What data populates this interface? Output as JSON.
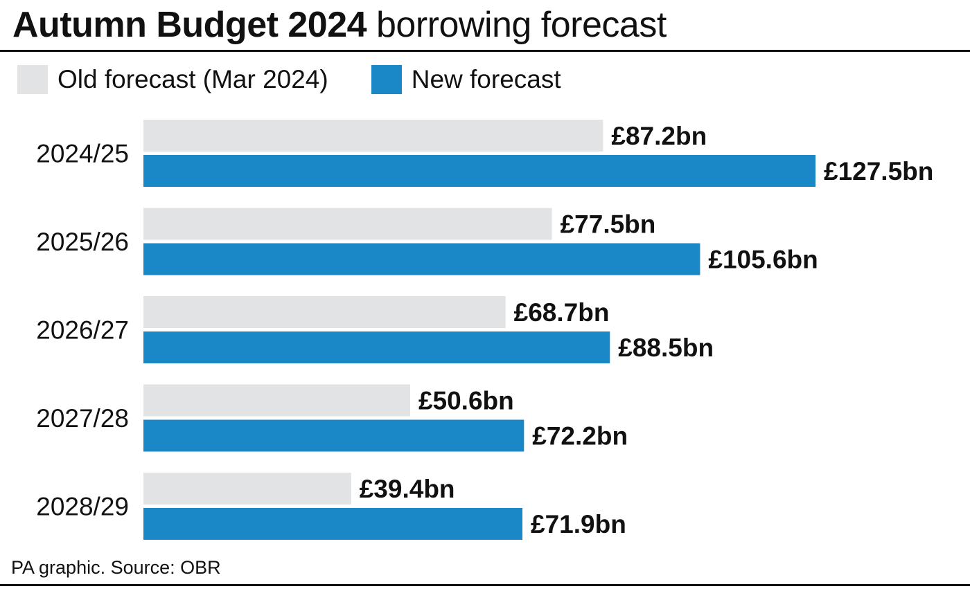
{
  "header": {
    "title_bold": "Autumn Budget 2024",
    "title_regular": "borrowing forecast"
  },
  "legend": [
    {
      "label": "Old forecast (Mar 2024)",
      "color": "#e2e3e4"
    },
    {
      "label": "New forecast",
      "color": "#1a87c6"
    }
  ],
  "footer": {
    "source": "PA graphic. Source: OBR"
  },
  "chart_data": {
    "type": "bar",
    "orientation": "horizontal",
    "categories": [
      "2024/25",
      "2025/26",
      "2026/27",
      "2027/28",
      "2028/29"
    ],
    "series": [
      {
        "name": "Old forecast (Mar 2024)",
        "color": "#e2e3e4",
        "values": [
          87.2,
          77.5,
          68.7,
          50.6,
          39.4
        ],
        "labels": [
          "£87.2bn",
          "£77.5bn",
          "£68.7bn",
          "£50.6bn",
          "£39.4bn"
        ]
      },
      {
        "name": "New forecast",
        "color": "#1a87c6",
        "values": [
          127.5,
          105.6,
          88.5,
          72.2,
          71.9
        ],
        "labels": [
          "£127.5bn",
          "£105.6bn",
          "£88.5bn",
          "£72.2bn",
          "£71.9bn"
        ]
      }
    ],
    "xlim": [
      0,
      127.5
    ],
    "grid": false,
    "legend_position": "top-left"
  }
}
